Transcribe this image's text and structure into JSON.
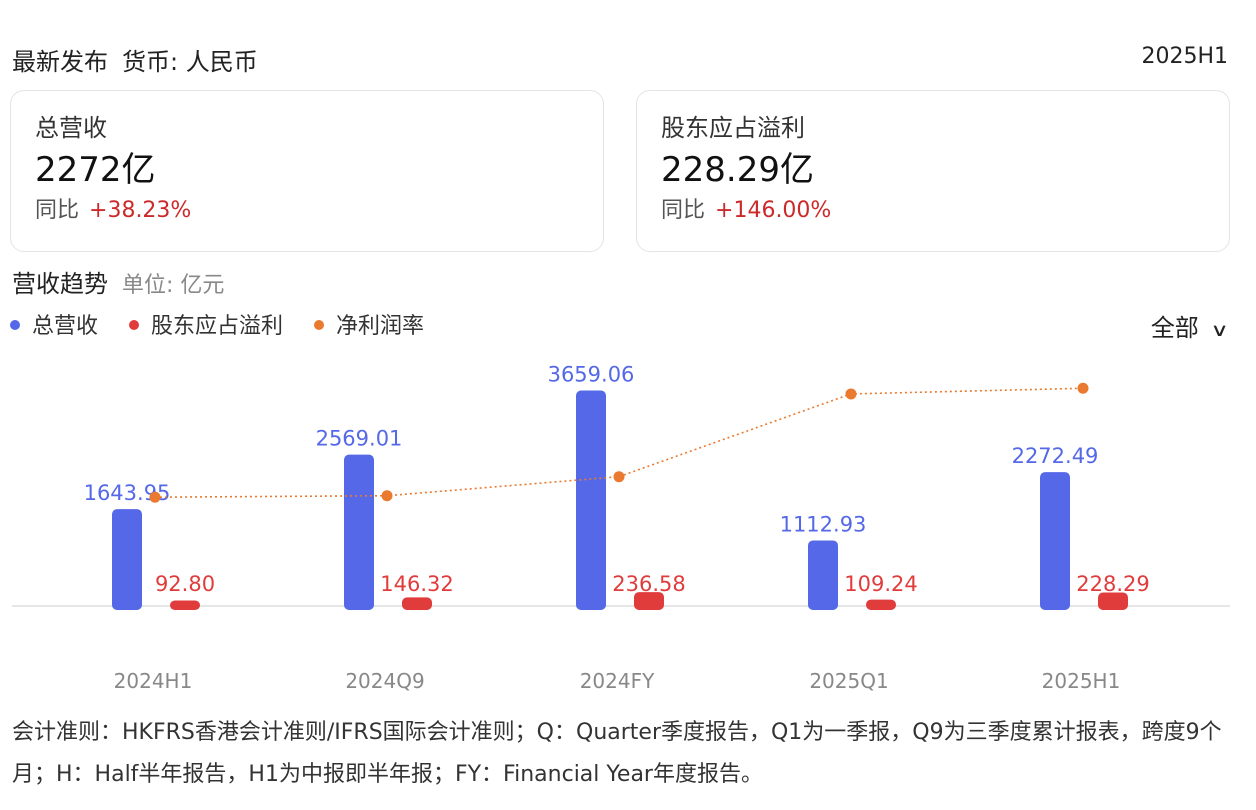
{
  "header": {
    "latest_label": "最新发布",
    "currency_label": "货币: 人民币",
    "period": "2025H1"
  },
  "cards": [
    {
      "label": "总营收",
      "value": "2272亿",
      "yoy_label": "同比",
      "yoy_value": "+38.23%"
    },
    {
      "label": "股东应占溢利",
      "value": "228.29亿",
      "yoy_label": "同比",
      "yoy_value": "+146.00%"
    }
  ],
  "trend": {
    "title": "营收趋势",
    "unit": "单位: 亿元"
  },
  "filter": {
    "label": "全部"
  },
  "colors": {
    "revenue": "#5468e8",
    "profit": "#e03c3c",
    "margin": "#ea7a2f",
    "axis_label": "#888888",
    "change": "#cc2a2a"
  },
  "chart_data": {
    "type": "bar",
    "categories": [
      "2024H1",
      "2024Q9",
      "2024FY",
      "2025Q1",
      "2025H1"
    ],
    "series": [
      {
        "name": "总营收",
        "type": "bar",
        "values": [
          1643.95,
          2569.01,
          3659.06,
          1112.93,
          2272.49
        ]
      },
      {
        "name": "股东应占溢利",
        "type": "bar",
        "values": [
          92.8,
          146.32,
          236.58,
          109.24,
          228.29
        ]
      },
      {
        "name": "净利润率",
        "type": "line",
        "values": [
          5.64,
          5.7,
          6.47,
          9.82,
          10.05
        ]
      }
    ],
    "legend": "top-left"
  },
  "footnote": "会计准则：HKFRS香港会计准则/IFRS国际会计准则；Q：Quarter季度报告，Q1为一季报，Q9为三季度累计报表，跨度9个月；H：Half半年报告，H1为中报即半年报；FY：Financial Year年度报告。"
}
